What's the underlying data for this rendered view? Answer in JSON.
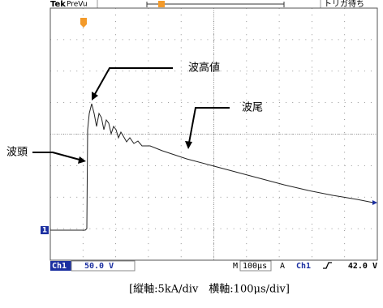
{
  "header": {
    "brand": "Tek",
    "mode": "PreVu",
    "status": "トリガ待ち"
  },
  "annotations": {
    "peak": "波高値",
    "tail": "波尾",
    "front": "波頭"
  },
  "channel_marker": "1",
  "footer": {
    "channel": "Ch1",
    "volts_per_div": "50.0 V",
    "time_label": "M",
    "time_per_div": "100μs",
    "trigger_label": "A",
    "trigger_channel": "Ch1",
    "trigger_level": "42.0 V"
  },
  "caption": "[縦軸:5kA/div　横軸:100μs/div]"
}
